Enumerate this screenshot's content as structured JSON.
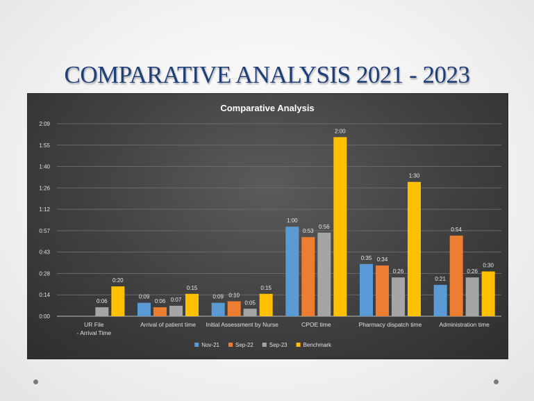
{
  "slide": {
    "title": "COMPARATIVE ANALYSIS 2021  - 2023"
  },
  "chart_data": {
    "type": "bar",
    "title": "Comparative Analysis",
    "categories": [
      "UR File\n - Arrival Time",
      "Arrival of patient time",
      "Initial Assessment by Nurse",
      "CPOE time",
      "Pharmacy dispatch time",
      "Administration time"
    ],
    "y_ticks": [
      "0:00",
      "0:14",
      "0:28",
      "0:43",
      "0:57",
      "1:12",
      "1:26",
      "1:40",
      "1:55",
      "2:09"
    ],
    "ylim_minutes": [
      0,
      129
    ],
    "grid": true,
    "legend_position": "bottom",
    "series": [
      {
        "name": "Nov-21",
        "color": "#5b9bd5",
        "values": [
          null,
          9,
          9,
          60,
          35,
          21
        ],
        "labels": [
          "",
          "0:09",
          "0:09",
          "1:00",
          "0:35",
          "0:21"
        ]
      },
      {
        "name": "Sep-22",
        "color": "#ed7d31",
        "values": [
          null,
          6,
          10,
          53,
          34,
          54
        ],
        "labels": [
          "",
          "0:06",
          "0:10",
          "0:53",
          "0:34",
          "0:54"
        ]
      },
      {
        "name": "Sep-23",
        "color": "#a5a5a5",
        "values": [
          6,
          7,
          5,
          56,
          26,
          26
        ],
        "labels": [
          "0:06",
          "0:07",
          "0:05",
          "0:56",
          "0:26",
          "0:26"
        ]
      },
      {
        "name": "Benchmark",
        "color": "#ffc000",
        "values": [
          20,
          15,
          15,
          120,
          90,
          30
        ],
        "labels": [
          "0:20",
          "0:15",
          "0:15",
          "2:00",
          "1:30",
          "0:30"
        ]
      }
    ]
  }
}
